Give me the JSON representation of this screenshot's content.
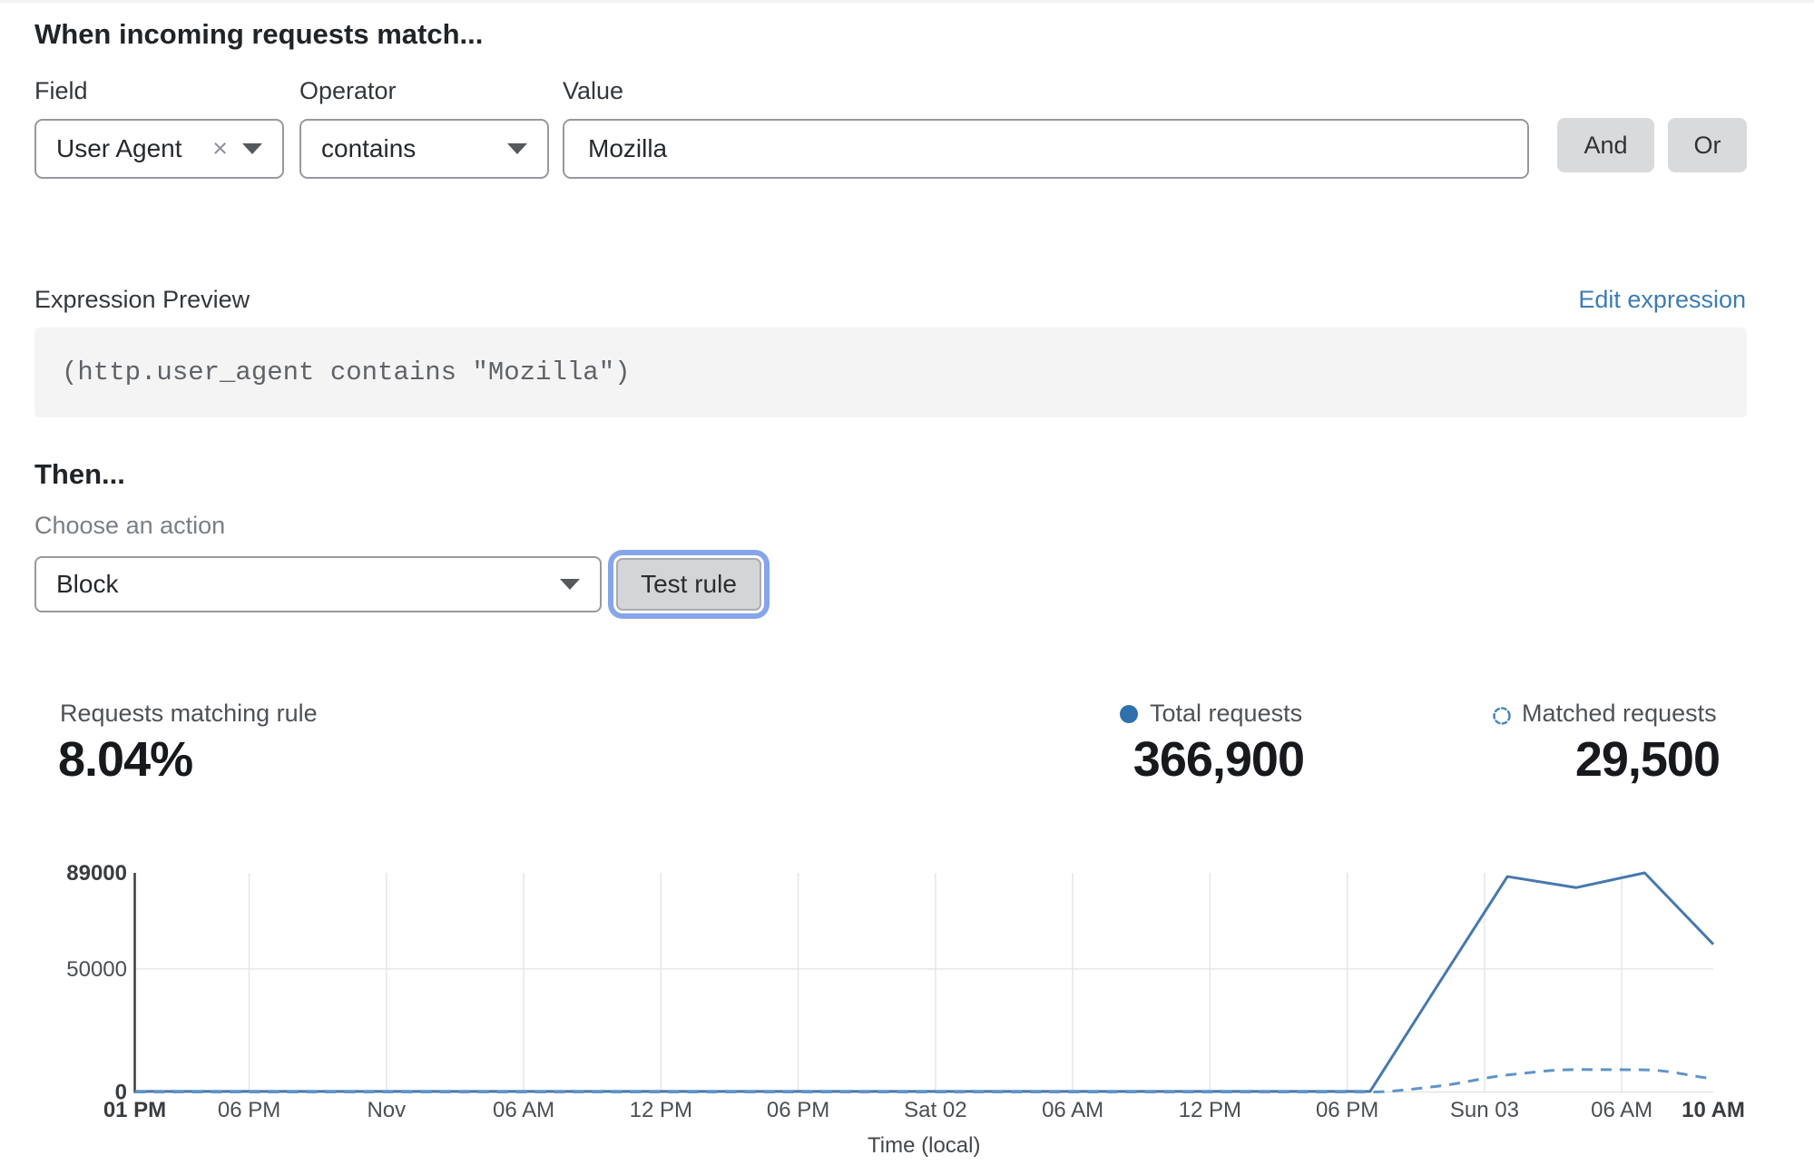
{
  "colors": {
    "accent_blue": "#2e71ad",
    "line_total": "#4678ad",
    "line_matched": "#5e94c8",
    "link_blue": "#3d7bb5",
    "focus_ring": "#86a6ea"
  },
  "rule_builder": {
    "heading": "When incoming requests match...",
    "field": {
      "label": "Field",
      "value": "User Agent",
      "clear_icon": "×"
    },
    "operator": {
      "label": "Operator",
      "value": "contains"
    },
    "value": {
      "label": "Value",
      "value": "Mozilla"
    },
    "and_button": "And",
    "or_button": "Or"
  },
  "expression": {
    "label": "Expression Preview",
    "edit_link": "Edit expression",
    "code": "(http.user_agent contains \"Mozilla\")"
  },
  "action": {
    "heading": "Then...",
    "label": "Choose an action",
    "value": "Block",
    "test_button": "Test rule"
  },
  "stats": {
    "matching": {
      "label": "Requests matching rule",
      "value": "8.04%"
    },
    "total": {
      "label": "Total requests",
      "value": "366,900"
    },
    "matched": {
      "label": "Matched requests",
      "value": "29,500"
    }
  },
  "chart_data": {
    "type": "line",
    "title": "",
    "xlabel": "Time (local)",
    "ylabel": "",
    "x_unit": "hours since Thu Oct 31 1:00 PM (local)",
    "x_range_hours": [
      0,
      69
    ],
    "ylim": [
      0,
      89000
    ],
    "grid": true,
    "legend_position": "above-right",
    "y_ticks": [
      {
        "value": 0,
        "label": "0",
        "bold": true
      },
      {
        "value": 50000,
        "label": "50000",
        "bold": false
      },
      {
        "value": 89000,
        "label": "89000",
        "bold": true
      }
    ],
    "x_ticks": [
      {
        "hour": 0,
        "label": "01 PM",
        "bold": true,
        "gridline": false
      },
      {
        "hour": 5,
        "label": "06 PM",
        "bold": false,
        "gridline": true
      },
      {
        "hour": 11,
        "label": "Nov",
        "bold": false,
        "gridline": true
      },
      {
        "hour": 17,
        "label": "06 AM",
        "bold": false,
        "gridline": true
      },
      {
        "hour": 23,
        "label": "12 PM",
        "bold": false,
        "gridline": true
      },
      {
        "hour": 29,
        "label": "06 PM",
        "bold": false,
        "gridline": true
      },
      {
        "hour": 35,
        "label": "Sat 02",
        "bold": false,
        "gridline": true
      },
      {
        "hour": 41,
        "label": "06 AM",
        "bold": false,
        "gridline": true
      },
      {
        "hour": 47,
        "label": "12 PM",
        "bold": false,
        "gridline": true
      },
      {
        "hour": 53,
        "label": "06 PM",
        "bold": false,
        "gridline": true
      },
      {
        "hour": 59,
        "label": "Sun 03",
        "bold": false,
        "gridline": true
      },
      {
        "hour": 65,
        "label": "06 AM",
        "bold": false,
        "gridline": true
      },
      {
        "hour": 69,
        "label": "10 AM",
        "bold": true,
        "gridline": false
      }
    ],
    "series": [
      {
        "name": "Total requests",
        "style": "solid",
        "color": "#4678ad",
        "curve": false,
        "points": [
          [
            0,
            250
          ],
          [
            54,
            250
          ],
          [
            57,
            44000
          ],
          [
            60,
            87500
          ],
          [
            63,
            83000
          ],
          [
            66,
            89000
          ],
          [
            69,
            60000
          ]
        ]
      },
      {
        "name": "Matched requests",
        "style": "dashed",
        "color": "#5e94c8",
        "curve": true,
        "points": [
          [
            0,
            0
          ],
          [
            54,
            0
          ],
          [
            57,
            2400
          ],
          [
            60,
            6900
          ],
          [
            63,
            9100
          ],
          [
            66,
            9000
          ],
          [
            69,
            5300
          ]
        ]
      }
    ]
  }
}
